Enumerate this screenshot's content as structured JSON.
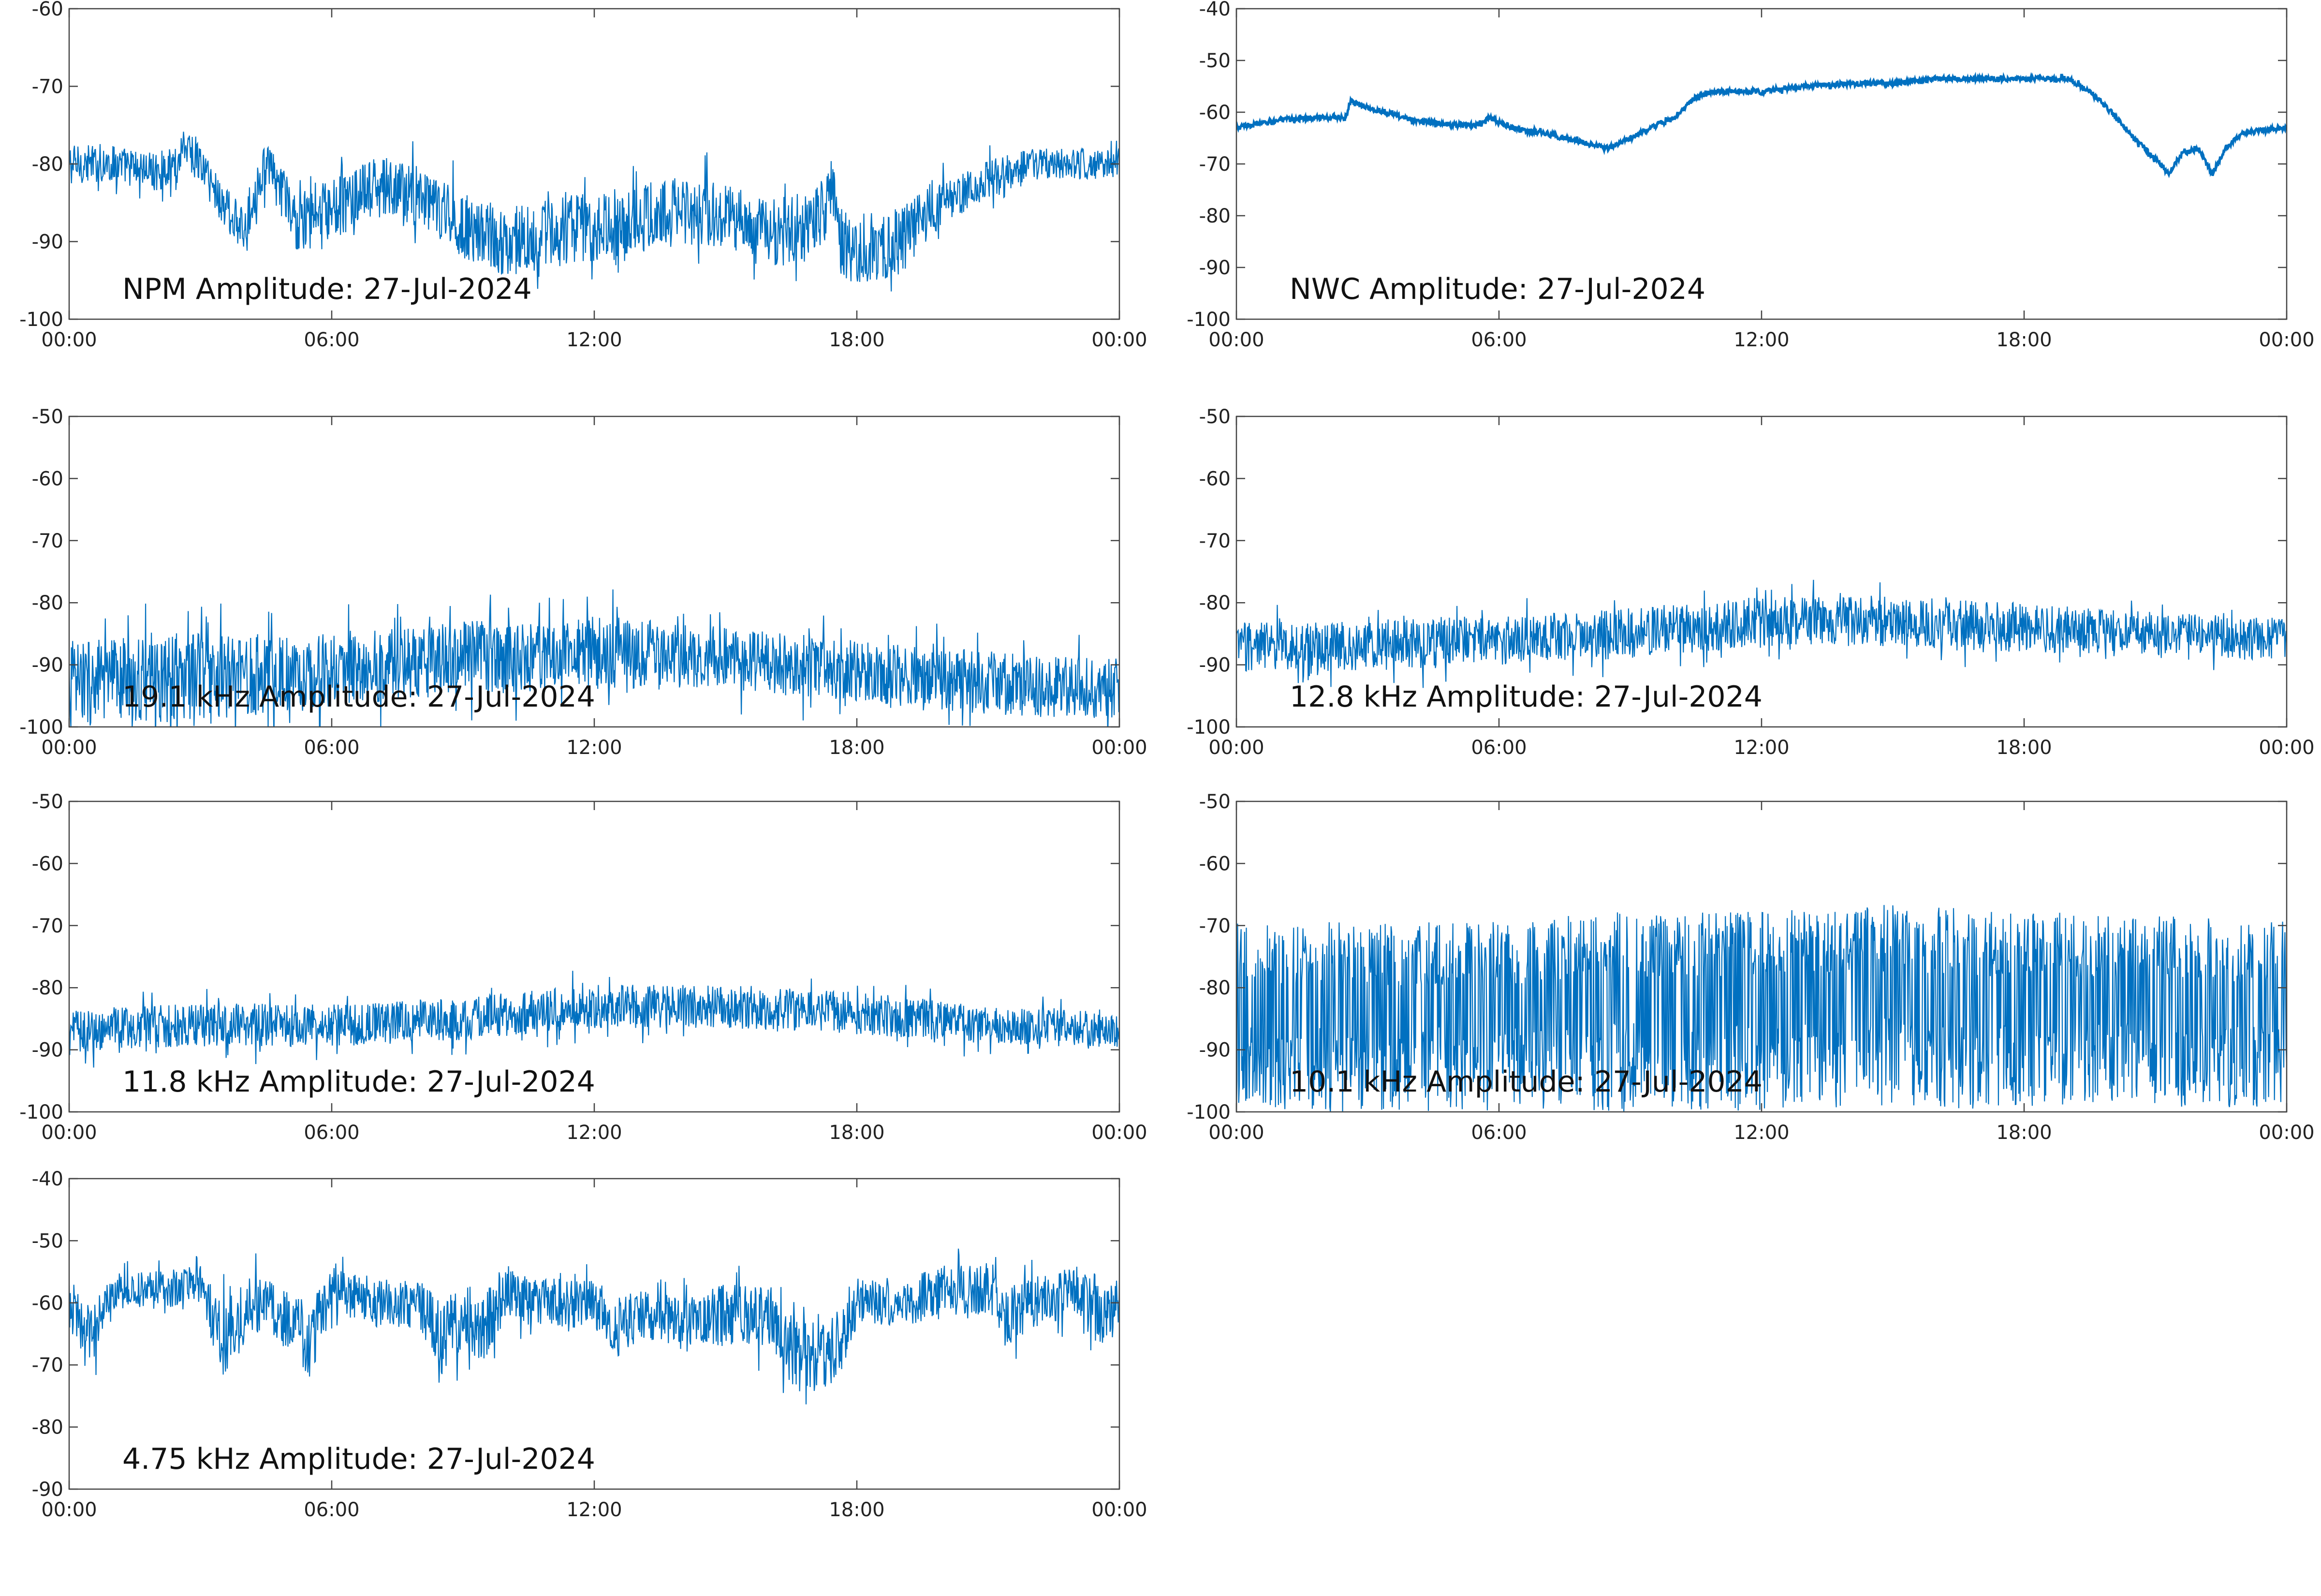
{
  "figure": {
    "line_color": "#0070C0",
    "background": "#ffffff"
  },
  "chart_data": [
    {
      "type": "line",
      "title": "NPM Amplitude: 27-Jul-2024",
      "xlabel": "",
      "ylabel": "",
      "x_ticks": [
        "00:00",
        "06:00",
        "12:00",
        "18:00",
        "00:00"
      ],
      "xlim": [
        0,
        24
      ],
      "ylim": [
        -100,
        -60
      ],
      "y_ticks": [
        -60,
        -70,
        -80,
        -90,
        -100
      ],
      "series": [
        {
          "x": [
            0,
            1,
            2,
            2.5,
            2.6,
            3,
            3.5,
            4,
            4.2,
            4.5,
            5,
            5.2,
            6,
            7,
            8,
            9,
            10,
            11,
            12,
            13,
            14,
            15,
            16,
            17,
            17.5,
            17.6,
            18,
            19,
            19.5,
            20,
            21,
            22,
            23,
            24
          ],
          "values": [
            -80,
            -80,
            -81,
            -80,
            -77,
            -80,
            -85,
            -89,
            -84,
            -80,
            -85,
            -88,
            -86,
            -83,
            -84,
            -88,
            -90,
            -89,
            -88,
            -87,
            -86,
            -87,
            -89,
            -88,
            -84,
            -90,
            -91,
            -90,
            -87,
            -85,
            -82,
            -80,
            -80,
            -80
          ],
          "spread": [
            2.5,
            2.5,
            2.5,
            2.5,
            2.5,
            3,
            3,
            3,
            3,
            3,
            3.5,
            3.5,
            4,
            4,
            4,
            4.5,
            4.5,
            4.5,
            4.5,
            4.5,
            4.5,
            4.5,
            4.5,
            4.5,
            4.5,
            4.5,
            4.5,
            4.5,
            3.5,
            3,
            2.5,
            2,
            2,
            2
          ]
        }
      ]
    },
    {
      "type": "line",
      "title": "NWC Amplitude: 27-Jul-2024",
      "xlabel": "",
      "ylabel": "",
      "x_ticks": [
        "00:00",
        "06:00",
        "12:00",
        "18:00",
        "00:00"
      ],
      "xlim": [
        0,
        24
      ],
      "ylim": [
        -100,
        -40
      ],
      "y_ticks": [
        -40,
        -50,
        -60,
        -70,
        -80,
        -90,
        -100
      ],
      "series": [
        {
          "x": [
            0,
            1,
            2,
            2.5,
            2.6,
            3,
            4,
            5,
            5.5,
            5.8,
            6,
            6.5,
            7,
            7.5,
            8,
            8.5,
            9,
            9.5,
            10,
            10.5,
            11,
            12,
            13,
            14,
            15,
            16,
            17,
            18,
            19,
            19.5,
            20,
            20.5,
            21,
            21.3,
            21.6,
            22,
            22.3,
            22.6,
            23,
            24
          ],
          "values": [
            -63,
            -61.5,
            -61,
            -61,
            -58,
            -59,
            -61.5,
            -62.5,
            -62.5,
            -61,
            -62,
            -63.5,
            -64,
            -65,
            -66,
            -67,
            -65,
            -63,
            -61,
            -57,
            -56,
            -56,
            -55,
            -54.5,
            -54.5,
            -53.5,
            -53.5,
            -53.5,
            -53.5,
            -56,
            -60,
            -65,
            -69,
            -72,
            -68,
            -67,
            -72,
            -67,
            -64,
            -63
          ],
          "spread": [
            0.5,
            0.5,
            0.5,
            0.5,
            0.5,
            0.5,
            0.5,
            0.5,
            0.5,
            0.5,
            0.5,
            0.5,
            0.5,
            0.5,
            0.5,
            0.5,
            0.5,
            0.5,
            0.5,
            0.5,
            0.5,
            0.5,
            0.5,
            0.5,
            0.5,
            0.5,
            0.5,
            0.5,
            0.5,
            0.5,
            0.5,
            0.5,
            0.5,
            0.5,
            0.5,
            0.5,
            0.5,
            0.5,
            0.5,
            0.5
          ]
        }
      ]
    },
    {
      "type": "line",
      "title": "19.1 kHz Amplitude: 27-Jul-2024",
      "xlabel": "",
      "ylabel": "",
      "x_ticks": [
        "00:00",
        "06:00",
        "12:00",
        "18:00",
        "00:00"
      ],
      "xlim": [
        0,
        24
      ],
      "ylim": [
        -100,
        -50
      ],
      "y_ticks": [
        -50,
        -60,
        -70,
        -80,
        -90,
        -100
      ],
      "series": [
        {
          "x": [
            0,
            3,
            6,
            9,
            12,
            15,
            18,
            21,
            24
          ],
          "values": [
            -93,
            -92,
            -91,
            -89,
            -88,
            -89,
            -91,
            -93,
            -94
          ],
          "spread": [
            7,
            7,
            6,
            6,
            6,
            5,
            5,
            5,
            5
          ]
        }
      ]
    },
    {
      "type": "line",
      "title": "12.8 kHz Amplitude: 27-Jul-2024",
      "xlabel": "",
      "ylabel": "",
      "x_ticks": [
        "00:00",
        "06:00",
        "12:00",
        "18:00",
        "00:00"
      ],
      "xlim": [
        0,
        24
      ],
      "ylim": [
        -100,
        -50
      ],
      "y_ticks": [
        -50,
        -60,
        -70,
        -80,
        -90,
        -100
      ],
      "series": [
        {
          "x": [
            0,
            3,
            6,
            9,
            12,
            15,
            18,
            21,
            24
          ],
          "values": [
            -87,
            -87,
            -86,
            -85,
            -83,
            -83,
            -84,
            -85,
            -86
          ],
          "spread": [
            4,
            4,
            4,
            4,
            4,
            4,
            4,
            3.5,
            3.5
          ]
        }
      ]
    },
    {
      "type": "line",
      "title": "11.8 kHz Amplitude: 27-Jul-2024",
      "xlabel": "",
      "ylabel": "",
      "x_ticks": [
        "00:00",
        "06:00",
        "12:00",
        "18:00",
        "00:00"
      ],
      "xlim": [
        0,
        24
      ],
      "ylim": [
        -100,
        -50
      ],
      "y_ticks": [
        -50,
        -60,
        -70,
        -80,
        -90,
        -100
      ],
      "series": [
        {
          "x": [
            0,
            3,
            6,
            9,
            12,
            15,
            18,
            21,
            24
          ],
          "values": [
            -87,
            -86,
            -86,
            -85,
            -83,
            -83,
            -84,
            -86,
            -87
          ],
          "spread": [
            3.5,
            3.5,
            3.5,
            3.5,
            3.5,
            3.5,
            3.5,
            3,
            3
          ]
        }
      ]
    },
    {
      "type": "line",
      "title": "10.1 kHz Amplitude: 27-Jul-2024",
      "xlabel": "",
      "ylabel": "",
      "x_ticks": [
        "00:00",
        "06:00",
        "12:00",
        "18:00",
        "00:00"
      ],
      "xlim": [
        0,
        24
      ],
      "ylim": [
        -100,
        -50
      ],
      "y_ticks": [
        -50,
        -60,
        -70,
        -80,
        -90,
        -100
      ],
      "series": [
        {
          "x": [
            0,
            3,
            6,
            9,
            12,
            15,
            18,
            21,
            24
          ],
          "values": [
            -83,
            -83,
            -83,
            -82,
            -82,
            -81,
            -82,
            -82,
            -83
          ],
          "spread": [
            17,
            17,
            17,
            18,
            18,
            18,
            18,
            17,
            17
          ]
        }
      ]
    },
    {
      "type": "line",
      "title": "4.75 kHz Amplitude: 27-Jul-2024",
      "xlabel": "",
      "ylabel": "",
      "x_ticks": [
        "00:00",
        "06:00",
        "12:00",
        "18:00",
        "00:00"
      ],
      "xlim": [
        0,
        24
      ],
      "ylim": [
        -90,
        -40
      ],
      "y_ticks": [
        -40,
        -50,
        -60,
        -70,
        -80,
        -90
      ],
      "series": [
        {
          "x": [
            0,
            0.5,
            1,
            2,
            3,
            3.5,
            4,
            4.5,
            5,
            5.5,
            6,
            7,
            8,
            8.5,
            9,
            9.5,
            10,
            11,
            12,
            12.5,
            13,
            14,
            15,
            16,
            16.5,
            17,
            17.5,
            18,
            18.5,
            19,
            20,
            21,
            21.5,
            22,
            23,
            23.5,
            24
          ],
          "values": [
            -60,
            -66,
            -58,
            -58,
            -57,
            -66,
            -62,
            -60,
            -63,
            -66,
            -58,
            -60,
            -60,
            -66,
            -62,
            -64,
            -58,
            -60,
            -60,
            -64,
            -62,
            -63,
            -62,
            -62,
            -68,
            -69,
            -68,
            -60,
            -60,
            -60,
            -58,
            -58,
            -62,
            -60,
            -58,
            -62,
            -60
          ],
          "spread": [
            4,
            5,
            3,
            3,
            3,
            6,
            5,
            5,
            5,
            6,
            4,
            4,
            4,
            6,
            5,
            6,
            4,
            4,
            4,
            5,
            4,
            4,
            5,
            5,
            6,
            6,
            6,
            4,
            4,
            4,
            4,
            4,
            5,
            4,
            4,
            5,
            5
          ]
        }
      ]
    }
  ]
}
